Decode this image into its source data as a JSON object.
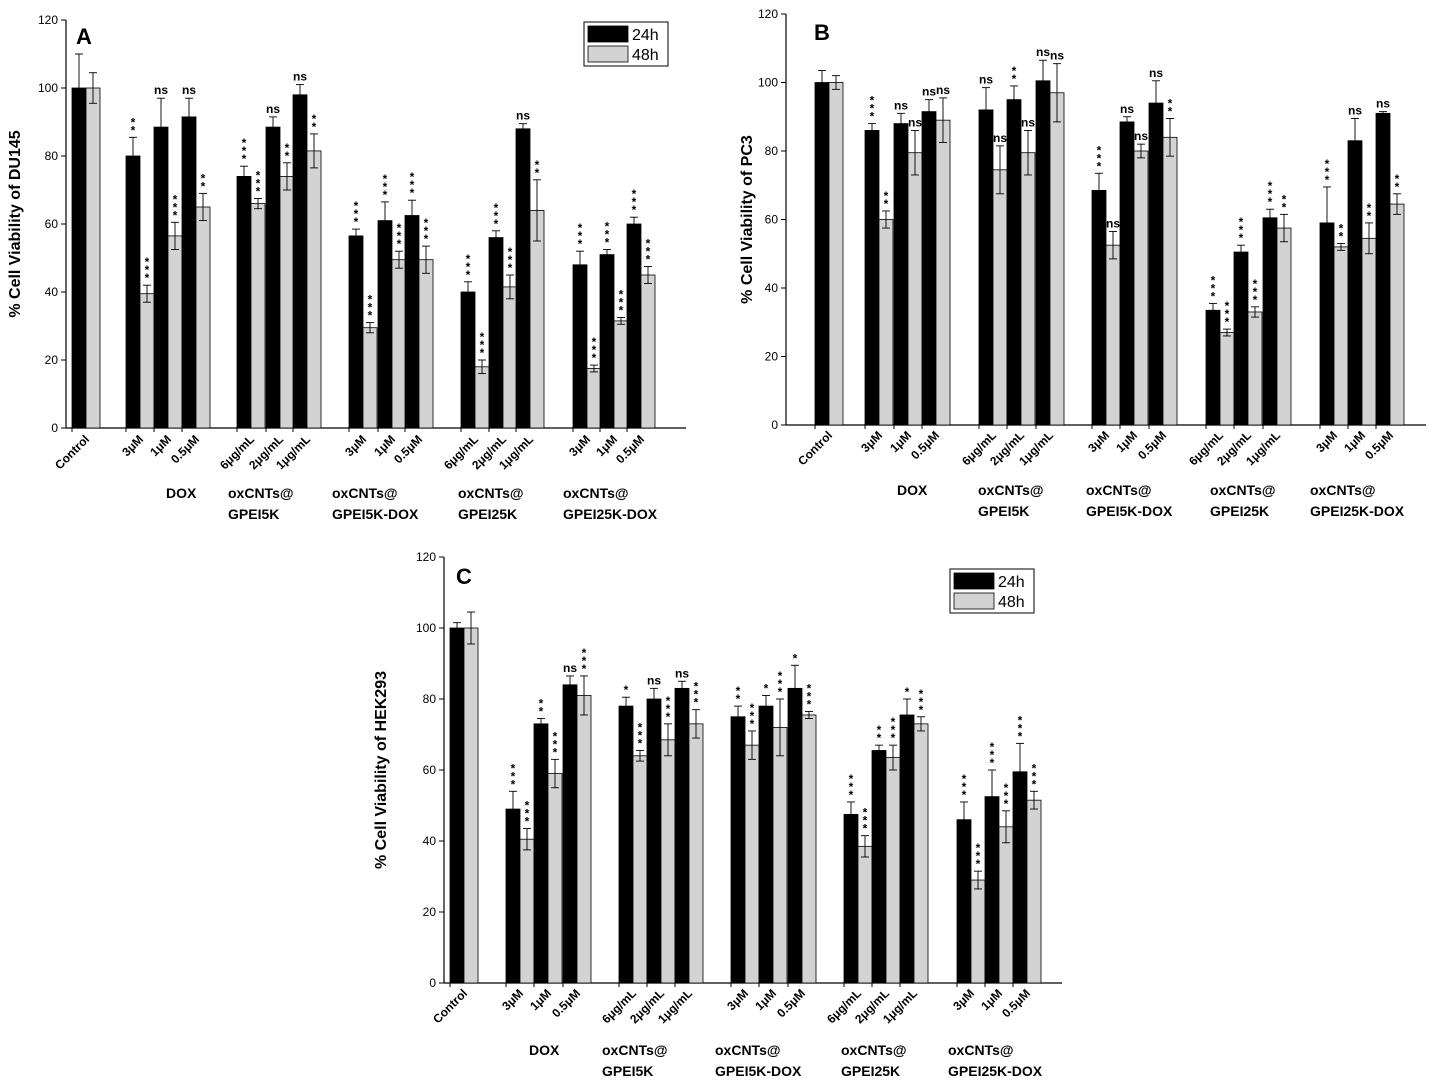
{
  "figure": {
    "colors": {
      "bar24": "#000000",
      "bar48": "#d3d3d3",
      "axis": "#000000",
      "background": "#ffffff"
    },
    "legend_entries": [
      "24h",
      "48h"
    ]
  },
  "chart_data": [
    {
      "type": "bar",
      "panel": "A",
      "ylabel": "% Cell Viability of DU145",
      "ylim": [
        0,
        120
      ],
      "yticks": [
        0,
        20,
        40,
        60,
        80,
        100,
        120
      ],
      "legend": [
        "24h",
        "48h"
      ],
      "groups": [
        {
          "label": [
            "Control"
          ],
          "bars": [
            {
              "tick": "Control",
              "v24": 100,
              "e24": 10,
              "v48": 100,
              "e48": 4.5,
              "s24": "",
              "s48": ""
            }
          ]
        },
        {
          "label": [
            "DOX"
          ],
          "bars": [
            {
              "tick": "3μM",
              "v24": 80,
              "e24": 5.5,
              "v48": 39.5,
              "e48": 2.5,
              "s24": "**",
              "s48": "***"
            },
            {
              "tick": "1μM",
              "v24": 88.5,
              "e24": 8.5,
              "v48": 56.5,
              "e48": 4,
              "s24": "ns",
              "s48": "***"
            },
            {
              "tick": "0.5μM",
              "v24": 91.5,
              "e24": 5.5,
              "v48": 65,
              "e48": 4,
              "s24": "ns",
              "s48": "**"
            }
          ]
        },
        {
          "label": [
            "oxCNTs@",
            "GPEI5K"
          ],
          "bars": [
            {
              "tick": "6μg/mL",
              "v24": 74,
              "e24": 3,
              "v48": 66,
              "e48": 1.5,
              "s24": "***",
              "s48": "***"
            },
            {
              "tick": "2μg/mL",
              "v24": 88.5,
              "e24": 3,
              "v48": 74,
              "e48": 4,
              "s24": "ns",
              "s48": "**"
            },
            {
              "tick": "1μg/mL",
              "v24": 98,
              "e24": 3,
              "v48": 81.5,
              "e48": 5,
              "s24": "ns",
              "s48": "**"
            }
          ]
        },
        {
          "label": [
            "oxCNTs@",
            "GPEI5K-DOX"
          ],
          "bars": [
            {
              "tick": "3μM",
              "v24": 56.5,
              "e24": 2,
              "v48": 29.5,
              "e48": 1.5,
              "s24": "***",
              "s48": "***"
            },
            {
              "tick": "1μM",
              "v24": 61,
              "e24": 5.5,
              "v48": 49.5,
              "e48": 2.5,
              "s24": "***",
              "s48": "***"
            },
            {
              "tick": "0.5μM",
              "v24": 62.5,
              "e24": 4.5,
              "v48": 49.5,
              "e48": 4,
              "s24": "***",
              "s48": "***"
            }
          ]
        },
        {
          "label": [
            "oxCNTs@",
            "GPEI25K"
          ],
          "bars": [
            {
              "tick": "6μg/mL",
              "v24": 40,
              "e24": 3,
              "v48": 18,
              "e48": 2,
              "s24": "***",
              "s48": "***"
            },
            {
              "tick": "2μg/mL",
              "v24": 56,
              "e24": 2,
              "v48": 41.5,
              "e48": 3.5,
              "s24": "***",
              "s48": "***"
            },
            {
              "tick": "1μg/mL",
              "v24": 88,
              "e24": 1.5,
              "v48": 64,
              "e48": 9,
              "s24": "ns",
              "s48": "**"
            }
          ]
        },
        {
          "label": [
            "oxCNTs@",
            "GPEI25K-DOX"
          ],
          "bars": [
            {
              "tick": "3μM",
              "v24": 48,
              "e24": 4,
              "v48": 17.5,
              "e48": 1,
              "s24": "***",
              "s48": "***"
            },
            {
              "tick": "1μM",
              "v24": 51,
              "e24": 1.5,
              "v48": 31.5,
              "e48": 1,
              "s24": "***",
              "s48": "***"
            },
            {
              "tick": "0.5μM",
              "v24": 60,
              "e24": 2,
              "v48": 45,
              "e48": 2.5,
              "s24": "***",
              "s48": "***"
            }
          ]
        }
      ]
    },
    {
      "type": "bar",
      "panel": "B",
      "ylabel": "% Cell Viability of PC3",
      "ylim": [
        0,
        120
      ],
      "yticks": [
        0,
        20,
        40,
        60,
        80,
        100,
        120
      ],
      "legend": [],
      "groups": [
        {
          "label": [
            "Control"
          ],
          "bars": [
            {
              "tick": "Control",
              "v24": 100,
              "e24": 3.5,
              "v48": 100,
              "e48": 2,
              "s24": "",
              "s48": ""
            }
          ]
        },
        {
          "label": [
            "DOX"
          ],
          "bars": [
            {
              "tick": "3μM",
              "v24": 86,
              "e24": 2,
              "v48": 60,
              "e48": 2.5,
              "s24": "***",
              "s48": "**"
            },
            {
              "tick": "1μM",
              "v24": 88,
              "e24": 3,
              "v48": 79.5,
              "e48": 6.5,
              "s24": "ns",
              "s48": "ns"
            },
            {
              "tick": "0.5μM",
              "v24": 91.5,
              "e24": 3.5,
              "v48": 89,
              "e48": 6.5,
              "s24": "ns",
              "s48": "ns"
            }
          ]
        },
        {
          "label": [
            "oxCNTs@",
            "GPEI5K"
          ],
          "bars": [
            {
              "tick": "6μg/mL",
              "v24": 92,
              "e24": 6.5,
              "v48": 74.5,
              "e48": 7,
              "s24": "ns",
              "s48": "ns"
            },
            {
              "tick": "2μg/mL",
              "v24": 95,
              "e24": 4,
              "v48": 79.5,
              "e48": 6.5,
              "s24": "**",
              "s48": "ns"
            },
            {
              "tick": "1μg/mL",
              "v24": 100.5,
              "e24": 6,
              "v48": 97,
              "e48": 8.5,
              "s24": "ns",
              "s48": "ns"
            }
          ]
        },
        {
          "label": [
            "oxCNTs@",
            "GPEI5K-DOX"
          ],
          "bars": [
            {
              "tick": "3μM",
              "v24": 68.5,
              "e24": 5,
              "v48": 52.5,
              "e48": 4,
              "s24": "***",
              "s48": "ns"
            },
            {
              "tick": "1μM",
              "v24": 88.5,
              "e24": 1.5,
              "v48": 80,
              "e48": 2,
              "s24": "ns",
              "s48": "ns"
            },
            {
              "tick": "0.5μM",
              "v24": 94,
              "e24": 6.5,
              "v48": 84,
              "e48": 5.5,
              "s24": "ns",
              "s48": "**"
            }
          ]
        },
        {
          "label": [
            "oxCNTs@",
            "GPEI25K"
          ],
          "bars": [
            {
              "tick": "6μg/mL",
              "v24": 33.5,
              "e24": 2,
              "v48": 27,
              "e48": 1,
              "s24": "***",
              "s48": "***"
            },
            {
              "tick": "2μg/mL",
              "v24": 50.5,
              "e24": 2,
              "v48": 33,
              "e48": 1.5,
              "s24": "***",
              "s48": "***"
            },
            {
              "tick": "1μg/mL",
              "v24": 60.5,
              "e24": 2.5,
              "v48": 57.5,
              "e48": 4,
              "s24": "***",
              "s48": "**"
            }
          ]
        },
        {
          "label": [
            "oxCNTs@",
            "GPEI25K-DOX"
          ],
          "bars": [
            {
              "tick": "3μM",
              "v24": 59,
              "e24": 10.5,
              "v48": 52,
              "e48": 1,
              "s24": "***",
              "s48": "**"
            },
            {
              "tick": "1μM",
              "v24": 83,
              "e24": 6.5,
              "v48": 54.5,
              "e48": 4.5,
              "s24": "ns",
              "s48": "**"
            },
            {
              "tick": "0.5μM",
              "v24": 91,
              "e24": 0.5,
              "v48": 64.5,
              "e48": 3,
              "s24": "ns",
              "s48": "**"
            }
          ]
        }
      ]
    },
    {
      "type": "bar",
      "panel": "C",
      "ylabel": "% Cell Viability of HEK293",
      "ylim": [
        0,
        120
      ],
      "yticks": [
        0,
        20,
        40,
        60,
        80,
        100,
        120
      ],
      "legend": [
        "24h",
        "48h"
      ],
      "groups": [
        {
          "label": [
            "Control"
          ],
          "bars": [
            {
              "tick": "Control",
              "v24": 100,
              "e24": 1.5,
              "v48": 100,
              "e48": 4.5,
              "s24": "",
              "s48": ""
            }
          ]
        },
        {
          "label": [
            "DOX"
          ],
          "bars": [
            {
              "tick": "3μM",
              "v24": 49,
              "e24": 5,
              "v48": 40.5,
              "e48": 3,
              "s24": "***",
              "s48": "***"
            },
            {
              "tick": "1μM",
              "v24": 73,
              "e24": 1.5,
              "v48": 59,
              "e48": 4,
              "s24": "**",
              "s48": "***"
            },
            {
              "tick": "0.5μM",
              "v24": 84,
              "e24": 2.5,
              "v48": 81,
              "e48": 5.5,
              "s24": "ns",
              "s48": "***"
            }
          ]
        },
        {
          "label": [
            "oxCNTs@",
            "GPEI5K"
          ],
          "bars": [
            {
              "tick": "6μg/mL",
              "v24": 78,
              "e24": 2.5,
              "v48": 64,
              "e48": 1.5,
              "s24": "*",
              "s48": "***"
            },
            {
              "tick": "2μg/mL",
              "v24": 80,
              "e24": 3,
              "v48": 68.5,
              "e48": 4.5,
              "s24": "ns",
              "s48": "***"
            },
            {
              "tick": "1μg/mL",
              "v24": 83,
              "e24": 2,
              "v48": 73,
              "e48": 4,
              "s24": "ns",
              "s48": "***"
            }
          ]
        },
        {
          "label": [
            "oxCNTs@",
            "GPEI5K-DOX"
          ],
          "bars": [
            {
              "tick": "3μM",
              "v24": 75,
              "e24": 3,
              "v48": 67,
              "e48": 4,
              "s24": "**",
              "s48": "***"
            },
            {
              "tick": "1μM",
              "v24": 78,
              "e24": 3,
              "v48": 72,
              "e48": 8,
              "s24": "*",
              "s48": "***"
            },
            {
              "tick": "0.5μM",
              "v24": 83,
              "e24": 6.5,
              "v48": 75.5,
              "e48": 1,
              "s24": "*",
              "s48": "***"
            }
          ]
        },
        {
          "label": [
            "oxCNTs@",
            "GPEI25K"
          ],
          "bars": [
            {
              "tick": "6μg/mL",
              "v24": 47.5,
              "e24": 3.5,
              "v48": 38.5,
              "e48": 3,
              "s24": "***",
              "s48": "***"
            },
            {
              "tick": "2μg/mL",
              "v24": 65.5,
              "e24": 1.5,
              "v48": 63.5,
              "e48": 3.5,
              "s24": "**",
              "s48": "***"
            },
            {
              "tick": "1μg/mL",
              "v24": 75.5,
              "e24": 4.5,
              "v48": 73,
              "e48": 2,
              "s24": "*",
              "s48": "***"
            }
          ]
        },
        {
          "label": [
            "oxCNTs@",
            "GPEI25K-DOX"
          ],
          "bars": [
            {
              "tick": "3μM",
              "v24": 46,
              "e24": 5,
              "v48": 29,
              "e48": 2.5,
              "s24": "***",
              "s48": "***"
            },
            {
              "tick": "1μM",
              "v24": 52.5,
              "e24": 7.5,
              "v48": 44,
              "e48": 4.5,
              "s24": "***",
              "s48": "***"
            },
            {
              "tick": "0.5μM",
              "v24": 59.5,
              "e24": 8,
              "v48": 51.5,
              "e48": 2.5,
              "s24": "***",
              "s48": "***"
            }
          ]
        }
      ]
    }
  ]
}
